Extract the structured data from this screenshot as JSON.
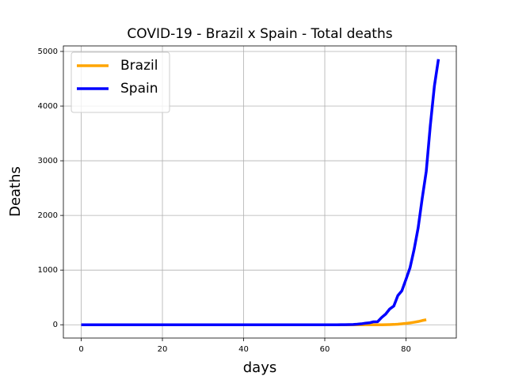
{
  "chart_data": {
    "type": "line",
    "title": "COVID-19 - Brazil x Spain - Total deaths",
    "x_label": "days",
    "y_label": "Deaths",
    "x": [
      0,
      1,
      2,
      3,
      4,
      5,
      6,
      7,
      8,
      9,
      10,
      11,
      12,
      13,
      14,
      15,
      16,
      17,
      18,
      19,
      20,
      21,
      22,
      23,
      24,
      25,
      26,
      27,
      28,
      29,
      30,
      31,
      32,
      33,
      34,
      35,
      36,
      37,
      38,
      39,
      40,
      41,
      42,
      43,
      44,
      45,
      46,
      47,
      48,
      49,
      50,
      51,
      52,
      53,
      54,
      55,
      56,
      57,
      58,
      59,
      60,
      61,
      62,
      63,
      64,
      65,
      66,
      67,
      68,
      69,
      70,
      71,
      72,
      73,
      74,
      75,
      76,
      77,
      78,
      79,
      80,
      81,
      82,
      83,
      84,
      85,
      86,
      87,
      88
    ],
    "series": [
      {
        "name": "Brazil",
        "color": "#ffa500",
        "values": [
          0,
          0,
          0,
          0,
          0,
          0,
          0,
          0,
          0,
          0,
          0,
          0,
          0,
          0,
          0,
          0,
          0,
          0,
          0,
          0,
          0,
          0,
          0,
          0,
          0,
          0,
          0,
          0,
          0,
          0,
          0,
          0,
          0,
          0,
          0,
          0,
          0,
          0,
          0,
          0,
          0,
          0,
          0,
          0,
          0,
          0,
          0,
          0,
          0,
          0,
          0,
          0,
          0,
          0,
          0,
          0,
          0,
          0,
          0,
          0,
          0,
          0,
          0,
          0,
          0,
          0,
          0,
          0,
          0,
          0,
          0,
          0,
          0,
          0,
          0,
          1,
          3,
          6,
          11,
          18,
          25,
          34,
          46,
          59,
          77,
          92,
          null,
          null,
          null
        ]
      },
      {
        "name": "Spain",
        "color": "#0000ff",
        "values": [
          0,
          0,
          0,
          0,
          0,
          0,
          0,
          0,
          0,
          0,
          0,
          0,
          0,
          0,
          0,
          0,
          0,
          0,
          0,
          0,
          0,
          0,
          0,
          0,
          0,
          0,
          0,
          0,
          0,
          0,
          0,
          0,
          0,
          0,
          0,
          0,
          0,
          0,
          0,
          0,
          0,
          0,
          0,
          0,
          0,
          0,
          0,
          0,
          0,
          0,
          0,
          0,
          0,
          0,
          0,
          0,
          0,
          0,
          0,
          0,
          0,
          0,
          0,
          0,
          1,
          2,
          3,
          5,
          10,
          17,
          28,
          35,
          54,
          55,
          133,
          195,
          289,
          342,
          533,
          623,
          830,
          1043,
          1375,
          1772,
          2311,
          2808,
          3647,
          4365,
          4858
        ]
      }
    ],
    "xlim": [
      -4.4,
      92.4
    ],
    "ylim": [
      -243,
      5101
    ],
    "xticks": [
      0,
      20,
      40,
      60,
      80
    ],
    "yticks": [
      0,
      1000,
      2000,
      3000,
      4000,
      5000
    ],
    "grid": true,
    "legend": "upper left"
  }
}
